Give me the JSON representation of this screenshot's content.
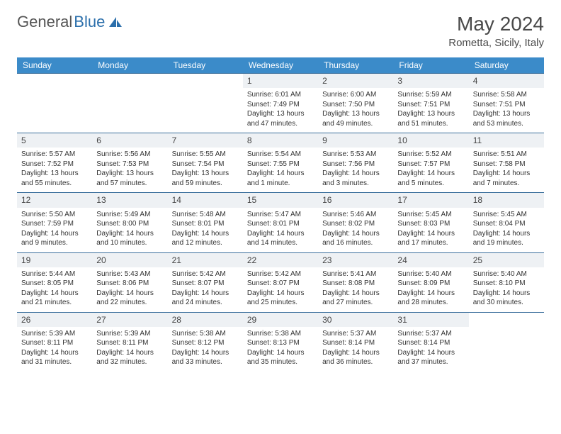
{
  "brand": {
    "part1": "General",
    "part2": "Blue"
  },
  "title": "May 2024",
  "location": "Rometta, Sicily, Italy",
  "colors": {
    "header_bg": "#3b8bc9",
    "divider": "#3b6f9c",
    "daynum_bg": "#eef1f4",
    "text": "#333333",
    "brand_gray": "#555555",
    "brand_blue": "#2b6fab"
  },
  "weekdays": [
    "Sunday",
    "Monday",
    "Tuesday",
    "Wednesday",
    "Thursday",
    "Friday",
    "Saturday"
  ],
  "weeks": [
    [
      null,
      null,
      null,
      {
        "n": "1",
        "sr": "Sunrise: 6:01 AM",
        "ss": "Sunset: 7:49 PM",
        "d1": "Daylight: 13 hours",
        "d2": "and 47 minutes."
      },
      {
        "n": "2",
        "sr": "Sunrise: 6:00 AM",
        "ss": "Sunset: 7:50 PM",
        "d1": "Daylight: 13 hours",
        "d2": "and 49 minutes."
      },
      {
        "n": "3",
        "sr": "Sunrise: 5:59 AM",
        "ss": "Sunset: 7:51 PM",
        "d1": "Daylight: 13 hours",
        "d2": "and 51 minutes."
      },
      {
        "n": "4",
        "sr": "Sunrise: 5:58 AM",
        "ss": "Sunset: 7:51 PM",
        "d1": "Daylight: 13 hours",
        "d2": "and 53 minutes."
      }
    ],
    [
      {
        "n": "5",
        "sr": "Sunrise: 5:57 AM",
        "ss": "Sunset: 7:52 PM",
        "d1": "Daylight: 13 hours",
        "d2": "and 55 minutes."
      },
      {
        "n": "6",
        "sr": "Sunrise: 5:56 AM",
        "ss": "Sunset: 7:53 PM",
        "d1": "Daylight: 13 hours",
        "d2": "and 57 minutes."
      },
      {
        "n": "7",
        "sr": "Sunrise: 5:55 AM",
        "ss": "Sunset: 7:54 PM",
        "d1": "Daylight: 13 hours",
        "d2": "and 59 minutes."
      },
      {
        "n": "8",
        "sr": "Sunrise: 5:54 AM",
        "ss": "Sunset: 7:55 PM",
        "d1": "Daylight: 14 hours",
        "d2": "and 1 minute."
      },
      {
        "n": "9",
        "sr": "Sunrise: 5:53 AM",
        "ss": "Sunset: 7:56 PM",
        "d1": "Daylight: 14 hours",
        "d2": "and 3 minutes."
      },
      {
        "n": "10",
        "sr": "Sunrise: 5:52 AM",
        "ss": "Sunset: 7:57 PM",
        "d1": "Daylight: 14 hours",
        "d2": "and 5 minutes."
      },
      {
        "n": "11",
        "sr": "Sunrise: 5:51 AM",
        "ss": "Sunset: 7:58 PM",
        "d1": "Daylight: 14 hours",
        "d2": "and 7 minutes."
      }
    ],
    [
      {
        "n": "12",
        "sr": "Sunrise: 5:50 AM",
        "ss": "Sunset: 7:59 PM",
        "d1": "Daylight: 14 hours",
        "d2": "and 9 minutes."
      },
      {
        "n": "13",
        "sr": "Sunrise: 5:49 AM",
        "ss": "Sunset: 8:00 PM",
        "d1": "Daylight: 14 hours",
        "d2": "and 10 minutes."
      },
      {
        "n": "14",
        "sr": "Sunrise: 5:48 AM",
        "ss": "Sunset: 8:01 PM",
        "d1": "Daylight: 14 hours",
        "d2": "and 12 minutes."
      },
      {
        "n": "15",
        "sr": "Sunrise: 5:47 AM",
        "ss": "Sunset: 8:01 PM",
        "d1": "Daylight: 14 hours",
        "d2": "and 14 minutes."
      },
      {
        "n": "16",
        "sr": "Sunrise: 5:46 AM",
        "ss": "Sunset: 8:02 PM",
        "d1": "Daylight: 14 hours",
        "d2": "and 16 minutes."
      },
      {
        "n": "17",
        "sr": "Sunrise: 5:45 AM",
        "ss": "Sunset: 8:03 PM",
        "d1": "Daylight: 14 hours",
        "d2": "and 17 minutes."
      },
      {
        "n": "18",
        "sr": "Sunrise: 5:45 AM",
        "ss": "Sunset: 8:04 PM",
        "d1": "Daylight: 14 hours",
        "d2": "and 19 minutes."
      }
    ],
    [
      {
        "n": "19",
        "sr": "Sunrise: 5:44 AM",
        "ss": "Sunset: 8:05 PM",
        "d1": "Daylight: 14 hours",
        "d2": "and 21 minutes."
      },
      {
        "n": "20",
        "sr": "Sunrise: 5:43 AM",
        "ss": "Sunset: 8:06 PM",
        "d1": "Daylight: 14 hours",
        "d2": "and 22 minutes."
      },
      {
        "n": "21",
        "sr": "Sunrise: 5:42 AM",
        "ss": "Sunset: 8:07 PM",
        "d1": "Daylight: 14 hours",
        "d2": "and 24 minutes."
      },
      {
        "n": "22",
        "sr": "Sunrise: 5:42 AM",
        "ss": "Sunset: 8:07 PM",
        "d1": "Daylight: 14 hours",
        "d2": "and 25 minutes."
      },
      {
        "n": "23",
        "sr": "Sunrise: 5:41 AM",
        "ss": "Sunset: 8:08 PM",
        "d1": "Daylight: 14 hours",
        "d2": "and 27 minutes."
      },
      {
        "n": "24",
        "sr": "Sunrise: 5:40 AM",
        "ss": "Sunset: 8:09 PM",
        "d1": "Daylight: 14 hours",
        "d2": "and 28 minutes."
      },
      {
        "n": "25",
        "sr": "Sunrise: 5:40 AM",
        "ss": "Sunset: 8:10 PM",
        "d1": "Daylight: 14 hours",
        "d2": "and 30 minutes."
      }
    ],
    [
      {
        "n": "26",
        "sr": "Sunrise: 5:39 AM",
        "ss": "Sunset: 8:11 PM",
        "d1": "Daylight: 14 hours",
        "d2": "and 31 minutes."
      },
      {
        "n": "27",
        "sr": "Sunrise: 5:39 AM",
        "ss": "Sunset: 8:11 PM",
        "d1": "Daylight: 14 hours",
        "d2": "and 32 minutes."
      },
      {
        "n": "28",
        "sr": "Sunrise: 5:38 AM",
        "ss": "Sunset: 8:12 PM",
        "d1": "Daylight: 14 hours",
        "d2": "and 33 minutes."
      },
      {
        "n": "29",
        "sr": "Sunrise: 5:38 AM",
        "ss": "Sunset: 8:13 PM",
        "d1": "Daylight: 14 hours",
        "d2": "and 35 minutes."
      },
      {
        "n": "30",
        "sr": "Sunrise: 5:37 AM",
        "ss": "Sunset: 8:14 PM",
        "d1": "Daylight: 14 hours",
        "d2": "and 36 minutes."
      },
      {
        "n": "31",
        "sr": "Sunrise: 5:37 AM",
        "ss": "Sunset: 8:14 PM",
        "d1": "Daylight: 14 hours",
        "d2": "and 37 minutes."
      },
      null
    ]
  ]
}
